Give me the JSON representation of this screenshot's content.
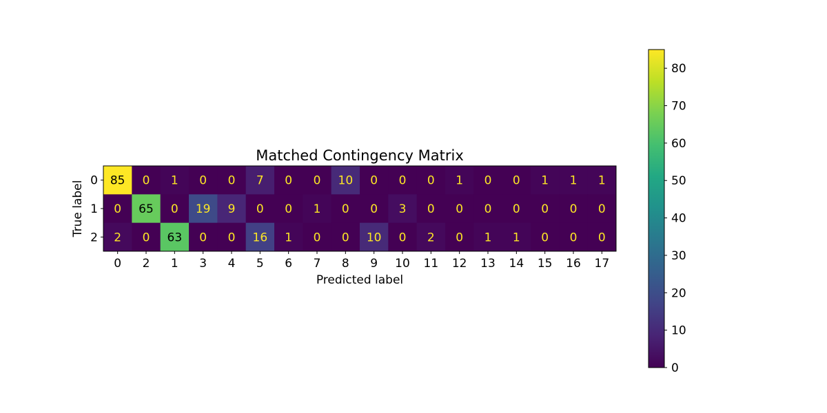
{
  "chart_data": {
    "type": "heatmap",
    "title": "Matched Contingency Matrix",
    "xlabel": "Predicted label",
    "ylabel": "True label",
    "x_categories": [
      "0",
      "2",
      "1",
      "3",
      "4",
      "5",
      "6",
      "7",
      "8",
      "9",
      "10",
      "11",
      "12",
      "13",
      "14",
      "15",
      "16",
      "17"
    ],
    "y_categories": [
      "0",
      "1",
      "2"
    ],
    "values": [
      [
        85,
        0,
        1,
        0,
        0,
        7,
        0,
        0,
        10,
        0,
        0,
        0,
        1,
        0,
        0,
        1,
        1,
        1
      ],
      [
        0,
        65,
        0,
        19,
        9,
        0,
        0,
        1,
        0,
        0,
        3,
        0,
        0,
        0,
        0,
        0,
        0,
        0
      ],
      [
        2,
        0,
        63,
        0,
        0,
        16,
        1,
        0,
        0,
        10,
        0,
        2,
        0,
        1,
        1,
        0,
        0,
        0
      ]
    ],
    "colormap": "viridis",
    "vmin": 0,
    "vmax": 85,
    "colorbar_ticks": [
      0,
      10,
      20,
      30,
      40,
      50,
      60,
      70,
      80
    ],
    "text_color_light": "#fde725",
    "text_color_dark": "#000000",
    "grid": false,
    "legend": "colorbar-right"
  }
}
